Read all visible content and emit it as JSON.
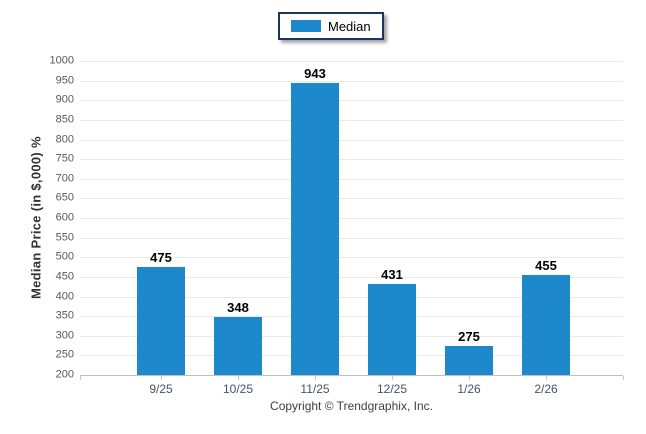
{
  "legend": {
    "label": "Median",
    "swatch_color": "#1E88CC"
  },
  "chart_data": {
    "type": "bar",
    "categories": [
      "9/25",
      "10/25",
      "11/25",
      "12/25",
      "1/26",
      "2/26"
    ],
    "values": [
      475,
      348,
      943,
      431,
      275,
      455
    ],
    "series": [
      {
        "name": "Median",
        "values": [
          475,
          348,
          943,
          431,
          275,
          455
        ]
      }
    ],
    "title": "",
    "xlabel": "",
    "ylabel": "Median Price (in $,000) %",
    "ylim": [
      200,
      1000
    ],
    "ytick_step": 50,
    "bar_color": "#1E88CC",
    "grid": true,
    "legend_position": "top-center",
    "data_labels": true
  },
  "footer": {
    "copyright": "Copyright © Trendgraphix, Inc."
  }
}
